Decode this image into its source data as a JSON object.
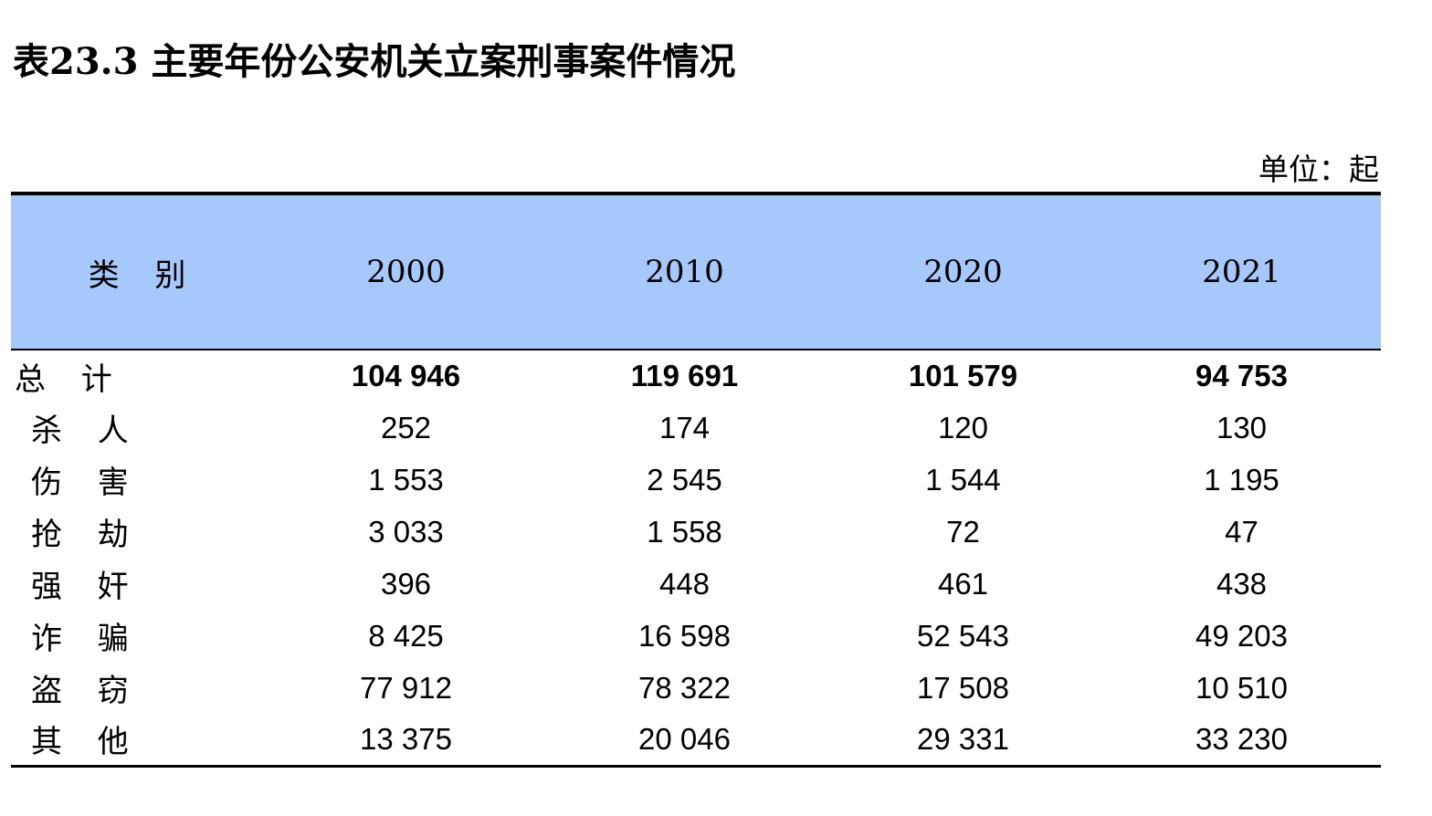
{
  "title": "表23.3 主要年份公安机关立案刑事案件情况",
  "unit": "单位：起",
  "table": {
    "category_header": "类 别",
    "year_headers": [
      "2000",
      "2010",
      "2020",
      "2021"
    ],
    "rows": [
      {
        "label": "总 计",
        "values": [
          "104 946",
          "119 691",
          "101 579",
          "94 753"
        ]
      },
      {
        "label": "杀 人",
        "values": [
          "252",
          "174",
          "120",
          "130"
        ]
      },
      {
        "label": "伤 害",
        "values": [
          "1 553",
          "2 545",
          "1 544",
          "1 195"
        ]
      },
      {
        "label": "抢 劫",
        "values": [
          "3 033",
          "1 558",
          "72",
          "47"
        ]
      },
      {
        "label": "强 奸",
        "values": [
          "396",
          "448",
          "461",
          "438"
        ]
      },
      {
        "label": "诈 骗",
        "values": [
          "8 425",
          "16 598",
          "52 543",
          "49 203"
        ]
      },
      {
        "label": "盗 窃",
        "values": [
          "77 912",
          "78 322",
          "17 508",
          "10 510"
        ]
      },
      {
        "label": "其 他",
        "values": [
          "13 375",
          "20 046",
          "29 331",
          "33 230"
        ]
      }
    ]
  },
  "colors": {
    "header_background": "#a6c8fa",
    "rule": "#000000"
  }
}
